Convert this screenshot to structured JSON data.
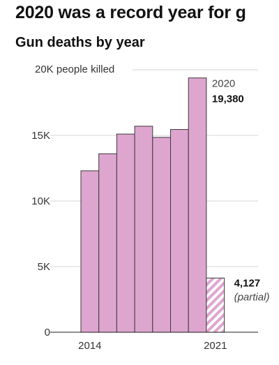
{
  "headline": "2020 was a record year for g",
  "chart_data": {
    "type": "bar",
    "title": "Gun deaths by year",
    "ylabel": "",
    "xlabel": "",
    "ylim": [
      0,
      20000
    ],
    "y_ticks": [
      {
        "value": 0,
        "label": "0"
      },
      {
        "value": 5000,
        "label": "5K"
      },
      {
        "value": 10000,
        "label": "10K"
      },
      {
        "value": 15000,
        "label": "15K"
      },
      {
        "value": 20000,
        "label": "20K people killed"
      }
    ],
    "x_tick_labels": [
      {
        "category": "2014",
        "label": "2014"
      },
      {
        "category": "2021",
        "label": "2021"
      }
    ],
    "categories": [
      "2014",
      "2015",
      "2016",
      "2017",
      "2018",
      "2019",
      "2020",
      "2021"
    ],
    "values": [
      12300,
      13600,
      15100,
      15700,
      14850,
      15450,
      19380,
      4127
    ],
    "partial": [
      false,
      false,
      false,
      false,
      false,
      false,
      false,
      true
    ],
    "annotations": [
      {
        "category": "2020",
        "line1": "2020",
        "line2": "19,380"
      },
      {
        "category": "2021",
        "line1": "4,127",
        "line2": "(partial)"
      }
    ],
    "grid": true,
    "colors": {
      "bar_fill": "#dea5cf",
      "bar_stroke": "#3a3a3a",
      "partial_hatch": "#dea5cf",
      "grid": "#d6d6d6"
    }
  }
}
